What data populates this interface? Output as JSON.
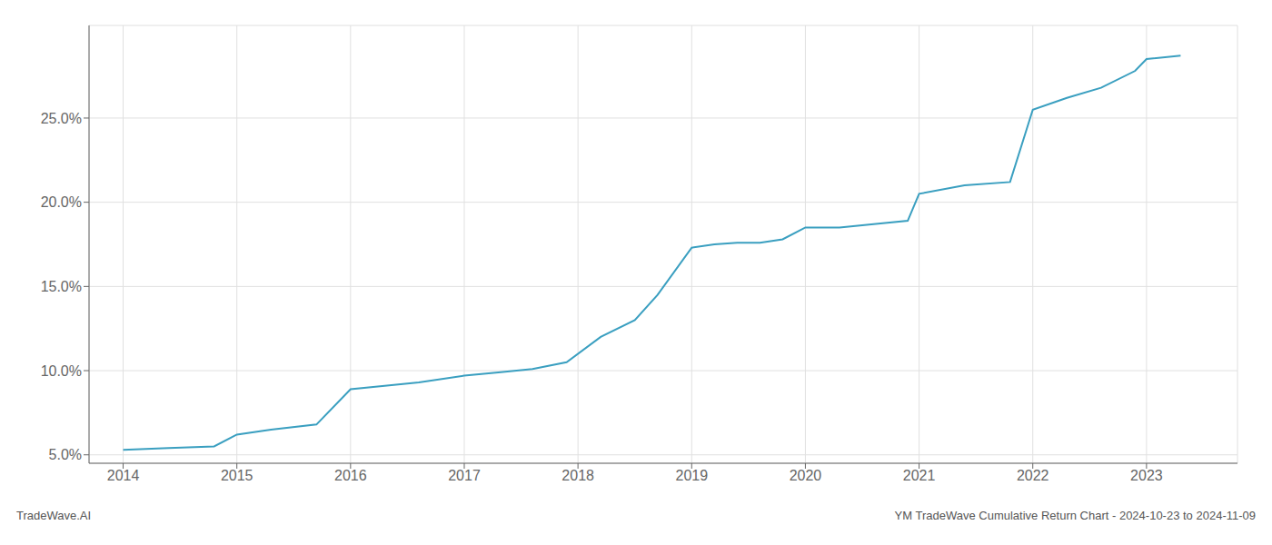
{
  "chart_data": {
    "type": "line",
    "x": [
      2014.0,
      2014.4,
      2014.8,
      2015.0,
      2015.3,
      2015.7,
      2016.0,
      2016.3,
      2016.6,
      2017.0,
      2017.3,
      2017.6,
      2017.9,
      2018.2,
      2018.5,
      2018.7,
      2019.0,
      2019.2,
      2019.4,
      2019.6,
      2019.8,
      2020.0,
      2020.3,
      2020.6,
      2020.9,
      2021.0,
      2021.4,
      2021.8,
      2022.0,
      2022.3,
      2022.6,
      2022.9,
      2023.0,
      2023.3
    ],
    "values": [
      5.3,
      5.4,
      5.5,
      6.2,
      6.5,
      6.8,
      8.9,
      9.1,
      9.3,
      9.7,
      9.9,
      10.1,
      10.5,
      12.0,
      13.0,
      14.5,
      17.3,
      17.5,
      17.6,
      17.6,
      17.8,
      18.5,
      18.5,
      18.7,
      18.9,
      20.5,
      21.0,
      21.2,
      25.5,
      26.2,
      26.8,
      27.8,
      28.5,
      28.7
    ],
    "color": "#3a9fc0",
    "xlim": [
      2013.7,
      2023.8
    ],
    "ylim": [
      4.5,
      30.5
    ],
    "xticks": [
      2014,
      2015,
      2016,
      2017,
      2018,
      2019,
      2020,
      2021,
      2022,
      2023
    ],
    "yticks": [
      {
        "value": 5.0,
        "label": "5.0%"
      },
      {
        "value": 10.0,
        "label": "10.0%"
      },
      {
        "value": 15.0,
        "label": "15.0%"
      },
      {
        "value": 20.0,
        "label": "20.0%"
      },
      {
        "value": 25.0,
        "label": "25.0%"
      }
    ],
    "grid": true,
    "annotations": [
      "TradeWave.AI",
      "YM TradeWave Cumulative Return Chart - 2024-10-23 to 2024-11-09"
    ]
  }
}
